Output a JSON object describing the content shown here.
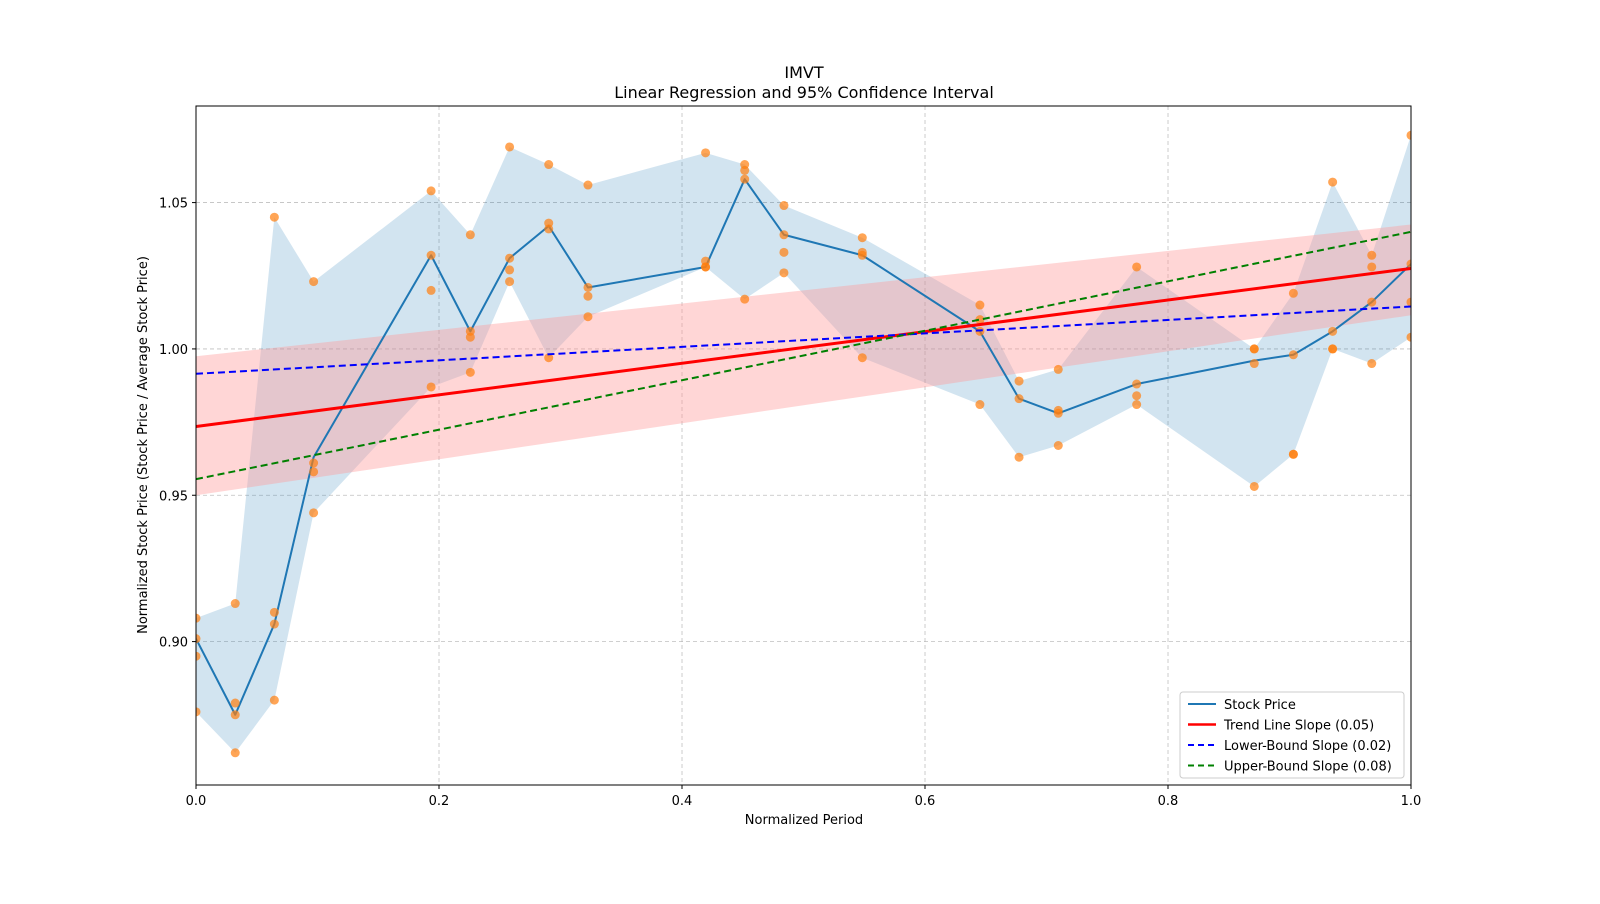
{
  "chart_data": {
    "type": "line",
    "title": "IMVT",
    "subtitle": "Linear Regression and 95% Confidence Interval",
    "xlabel": "Normalized Period",
    "ylabel": "Normalized Stock Price (Stock Price / Average Stock Price)",
    "xlim": [
      0.0,
      1.0
    ],
    "ylim": [
      0.851,
      1.083
    ],
    "grid": true,
    "legend_position": "lower-right",
    "x_ticks": [
      {
        "value": 0.0,
        "label": "0.0"
      },
      {
        "value": 0.2,
        "label": "0.2"
      },
      {
        "value": 0.4,
        "label": "0.4"
      },
      {
        "value": 0.6,
        "label": "0.6"
      },
      {
        "value": 0.8,
        "label": "0.8"
      },
      {
        "value": 1.0,
        "label": "1.0"
      }
    ],
    "y_ticks": [
      {
        "value": 0.9,
        "label": "0.90"
      },
      {
        "value": 0.95,
        "label": "0.95"
      },
      {
        "value": 1.0,
        "label": "1.00"
      },
      {
        "value": 1.05,
        "label": "1.05"
      }
    ],
    "colors": {
      "stock_line": "#1f77b4",
      "stock_band": "#1f77b4",
      "scatter": "#ff7f0e",
      "trend": "#ff0000",
      "trend_band": "#ff9999",
      "lower": "#0000ff",
      "upper": "#008000",
      "grid": "#b0b0b0"
    },
    "series": [
      {
        "name": "Stock Price",
        "kind": "line",
        "x": [
          0.0,
          0.0323,
          0.0645,
          0.0968,
          0.1935,
          0.2258,
          0.2581,
          0.2903,
          0.3226,
          0.4194,
          0.4516,
          0.4839,
          0.5484,
          0.6452,
          0.6774,
          0.7097,
          0.7742,
          0.871,
          0.9032,
          0.9355,
          0.9677,
          1.0
        ],
        "y": [
          0.901,
          0.875,
          0.906,
          0.963,
          1.032,
          1.006,
          1.031,
          1.042,
          1.021,
          1.028,
          1.058,
          1.039,
          1.032,
          1.006,
          0.983,
          0.978,
          0.988,
          0.996,
          0.998,
          1.006,
          1.016,
          1.029
        ]
      },
      {
        "name": "Price Range Band",
        "kind": "band",
        "x": [
          0.0,
          0.0323,
          0.0645,
          0.0968,
          0.1935,
          0.2258,
          0.2581,
          0.2903,
          0.3226,
          0.4194,
          0.4516,
          0.4839,
          0.5484,
          0.6452,
          0.6774,
          0.7097,
          0.7742,
          0.871,
          0.9032,
          0.9355,
          0.9677,
          1.0
        ],
        "upper": [
          0.908,
          0.913,
          1.045,
          1.023,
          1.054,
          1.039,
          1.069,
          1.063,
          1.056,
          1.067,
          1.063,
          1.049,
          1.038,
          1.015,
          0.989,
          0.993,
          1.028,
          1.0,
          1.019,
          1.057,
          1.032,
          1.073
        ],
        "lower": [
          0.876,
          0.862,
          0.88,
          0.944,
          0.987,
          0.992,
          1.023,
          0.997,
          1.011,
          1.028,
          1.017,
          1.026,
          0.997,
          0.981,
          0.963,
          0.967,
          0.981,
          0.953,
          0.964,
          1.0,
          0.995,
          1.004
        ]
      },
      {
        "name": "Observed Prices",
        "kind": "scatter",
        "points": [
          [
            0.0,
            0.908
          ],
          [
            0.0,
            0.901
          ],
          [
            0.0,
            0.895
          ],
          [
            0.0,
            0.876
          ],
          [
            0.0323,
            0.913
          ],
          [
            0.0323,
            0.879
          ],
          [
            0.0323,
            0.875
          ],
          [
            0.0323,
            0.862
          ],
          [
            0.0645,
            1.045
          ],
          [
            0.0645,
            0.91
          ],
          [
            0.0645,
            0.906
          ],
          [
            0.0645,
            0.88
          ],
          [
            0.0968,
            1.023
          ],
          [
            0.0968,
            0.961
          ],
          [
            0.0968,
            0.958
          ],
          [
            0.0968,
            0.944
          ],
          [
            0.1935,
            1.054
          ],
          [
            0.1935,
            1.032
          ],
          [
            0.1935,
            1.02
          ],
          [
            0.1935,
            0.987
          ],
          [
            0.2258,
            1.039
          ],
          [
            0.2258,
            1.006
          ],
          [
            0.2258,
            1.004
          ],
          [
            0.2258,
            0.992
          ],
          [
            0.2581,
            1.069
          ],
          [
            0.2581,
            1.031
          ],
          [
            0.2581,
            1.027
          ],
          [
            0.2581,
            1.023
          ],
          [
            0.2903,
            1.063
          ],
          [
            0.2903,
            1.043
          ],
          [
            0.2903,
            1.041
          ],
          [
            0.2903,
            0.997
          ],
          [
            0.3226,
            1.056
          ],
          [
            0.3226,
            1.021
          ],
          [
            0.3226,
            1.018
          ],
          [
            0.3226,
            1.011
          ],
          [
            0.4194,
            1.067
          ],
          [
            0.4194,
            1.03
          ],
          [
            0.4194,
            1.028
          ],
          [
            0.4194,
            1.028
          ],
          [
            0.4516,
            1.063
          ],
          [
            0.4516,
            1.061
          ],
          [
            0.4516,
            1.058
          ],
          [
            0.4516,
            1.017
          ],
          [
            0.4839,
            1.049
          ],
          [
            0.4839,
            1.039
          ],
          [
            0.4839,
            1.033
          ],
          [
            0.4839,
            1.026
          ],
          [
            0.5484,
            1.038
          ],
          [
            0.5484,
            1.033
          ],
          [
            0.5484,
            1.032
          ],
          [
            0.5484,
            0.997
          ],
          [
            0.6452,
            1.015
          ],
          [
            0.6452,
            1.01
          ],
          [
            0.6452,
            1.006
          ],
          [
            0.6452,
            0.981
          ],
          [
            0.6774,
            0.989
          ],
          [
            0.6774,
            0.983
          ],
          [
            0.6774,
            0.963
          ],
          [
            0.7097,
            0.993
          ],
          [
            0.7097,
            0.979
          ],
          [
            0.7097,
            0.978
          ],
          [
            0.7097,
            0.967
          ],
          [
            0.7742,
            1.028
          ],
          [
            0.7742,
            0.988
          ],
          [
            0.7742,
            0.984
          ],
          [
            0.7742,
            0.981
          ],
          [
            0.871,
            1.0
          ],
          [
            0.871,
            1.0
          ],
          [
            0.871,
            0.995
          ],
          [
            0.871,
            0.953
          ],
          [
            0.9032,
            1.019
          ],
          [
            0.9032,
            0.998
          ],
          [
            0.9032,
            0.964
          ],
          [
            0.9032,
            0.964
          ],
          [
            0.9355,
            1.057
          ],
          [
            0.9355,
            1.006
          ],
          [
            0.9355,
            1.0
          ],
          [
            0.9355,
            1.0
          ],
          [
            0.9677,
            1.032
          ],
          [
            0.9677,
            1.028
          ],
          [
            0.9677,
            1.016
          ],
          [
            0.9677,
            0.995
          ],
          [
            1.0,
            1.073
          ],
          [
            1.0,
            1.029
          ],
          [
            1.0,
            1.016
          ],
          [
            1.0,
            1.004
          ]
        ]
      },
      {
        "name": "Trend Line Slope (0.05)",
        "kind": "line",
        "x": [
          0.0,
          1.0
        ],
        "y": [
          0.9735,
          1.0275
        ],
        "band_lower": [
          0.95,
          1.0115
        ],
        "band_upper": [
          0.9975,
          1.0425
        ]
      },
      {
        "name": "Lower-Bound Slope (0.02)",
        "kind": "dashed-line",
        "x": [
          0.0,
          1.0
        ],
        "y": [
          0.9915,
          1.0145
        ]
      },
      {
        "name": "Upper-Bound Slope (0.08)",
        "kind": "dashed-line",
        "x": [
          0.0,
          1.0
        ],
        "y": [
          0.9555,
          1.04
        ]
      }
    ],
    "legend": [
      {
        "label": "Stock Price",
        "style": "solid",
        "color": "#1f77b4"
      },
      {
        "label": "Trend Line Slope (0.05)",
        "style": "solid",
        "color": "#ff0000"
      },
      {
        "label": "Lower-Bound Slope (0.02)",
        "style": "dashed",
        "color": "#0000ff"
      },
      {
        "label": "Upper-Bound Slope (0.08)",
        "style": "dashed",
        "color": "#008000"
      }
    ]
  }
}
